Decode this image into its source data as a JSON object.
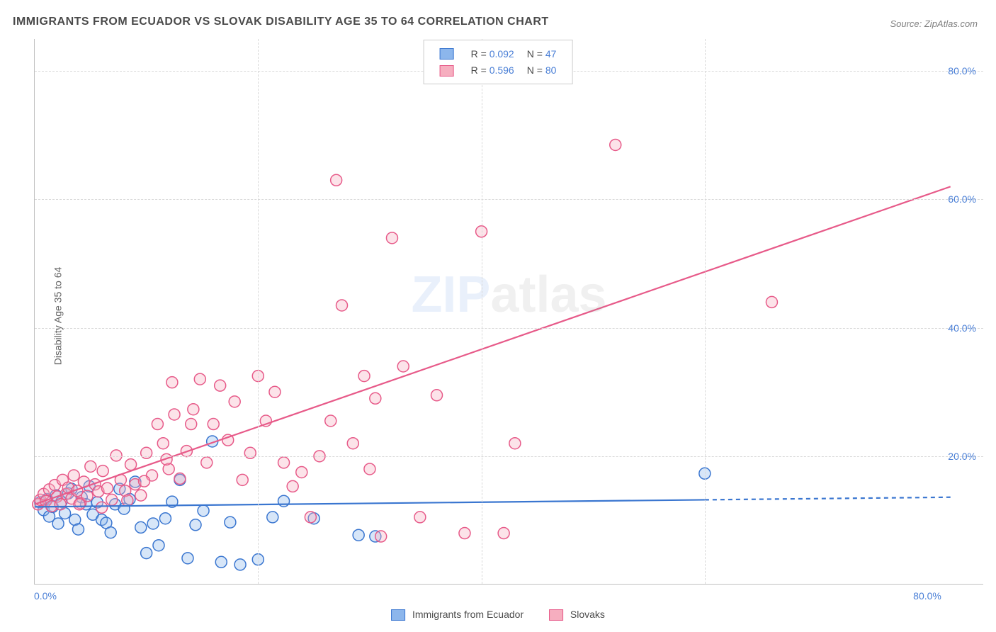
{
  "title": "IMMIGRANTS FROM ECUADOR VS SLOVAK DISABILITY AGE 35 TO 64 CORRELATION CHART",
  "source": "Source: ZipAtlas.com",
  "ylabel": "Disability Age 35 to 64",
  "watermark_zip": "ZIP",
  "watermark_atlas": "atlas",
  "chart": {
    "type": "scatter",
    "xlim": [
      0,
      85
    ],
    "ylim": [
      0,
      85
    ],
    "xticks": [
      0,
      80
    ],
    "xtick_labels": [
      "0.0%",
      "80.0%"
    ],
    "yticks": [
      20,
      40,
      60,
      80
    ],
    "ytick_labels": [
      "20.0%",
      "40.0%",
      "60.0%",
      "80.0%"
    ],
    "grid_color": "#d8d8d8",
    "background_color": "#ffffff",
    "marker_radius": 8,
    "marker_fill_opacity": 0.35,
    "marker_stroke_width": 1.5,
    "trend_width": 2.2,
    "series": [
      {
        "name": "Immigrants from Ecuador",
        "color_fill": "#8cb6ec",
        "color_stroke": "#3a76d0",
        "r_label": "R =",
        "r_value": "0.092",
        "n_label": "N =",
        "n_value": "47",
        "trend": {
          "x1": 0,
          "y1": 12.1,
          "x2": 60,
          "y2": 13.2,
          "x_dash_to": 82
        },
        "points": [
          [
            0.5,
            12.8
          ],
          [
            0.8,
            11.6
          ],
          [
            1.1,
            13.3
          ],
          [
            1.3,
            10.6
          ],
          [
            1.6,
            12.1
          ],
          [
            1.9,
            13.9
          ],
          [
            2.1,
            9.5
          ],
          [
            2.4,
            12.9
          ],
          [
            2.7,
            11.1
          ],
          [
            3.0,
            14.2
          ],
          [
            3.3,
            14.9
          ],
          [
            3.6,
            10.1
          ],
          [
            3.9,
            8.6
          ],
          [
            4.2,
            13.6
          ],
          [
            4.6,
            12.5
          ],
          [
            4.9,
            15.3
          ],
          [
            5.2,
            10.9
          ],
          [
            5.6,
            12.8
          ],
          [
            6.0,
            10.1
          ],
          [
            6.4,
            9.6
          ],
          [
            6.8,
            8.1
          ],
          [
            7.2,
            12.5
          ],
          [
            7.6,
            14.9
          ],
          [
            8.0,
            11.8
          ],
          [
            8.5,
            13.3
          ],
          [
            9.0,
            16.0
          ],
          [
            9.5,
            8.9
          ],
          [
            10.0,
            4.9
          ],
          [
            10.6,
            9.5
          ],
          [
            11.1,
            6.1
          ],
          [
            11.7,
            10.3
          ],
          [
            12.3,
            12.9
          ],
          [
            13.0,
            16.3
          ],
          [
            13.7,
            4.1
          ],
          [
            14.4,
            9.3
          ],
          [
            15.1,
            11.5
          ],
          [
            15.9,
            22.3
          ],
          [
            16.7,
            3.5
          ],
          [
            17.5,
            9.7
          ],
          [
            18.4,
            3.1
          ],
          [
            20.0,
            3.9
          ],
          [
            21.3,
            10.5
          ],
          [
            22.3,
            13.0
          ],
          [
            25.0,
            10.3
          ],
          [
            29.0,
            7.7
          ],
          [
            30.5,
            7.5
          ],
          [
            60.0,
            17.3
          ]
        ]
      },
      {
        "name": "Slovaks",
        "color_fill": "#f6aebf",
        "color_stroke": "#e75a89",
        "r_label": "R =",
        "r_value": "0.596",
        "n_label": "N =",
        "n_value": "80",
        "trend": {
          "x1": 0,
          "y1": 12.5,
          "x2": 82,
          "y2": 62.0,
          "x_dash_to": 82
        },
        "points": [
          [
            0.3,
            12.5
          ],
          [
            0.5,
            13.2
          ],
          [
            0.8,
            14.1
          ],
          [
            1.0,
            13.0
          ],
          [
            1.3,
            14.8
          ],
          [
            1.5,
            12.2
          ],
          [
            1.8,
            15.5
          ],
          [
            2.0,
            13.7
          ],
          [
            2.3,
            12.5
          ],
          [
            2.5,
            16.3
          ],
          [
            2.8,
            14.1
          ],
          [
            3.0,
            15.1
          ],
          [
            3.3,
            13.4
          ],
          [
            3.5,
            17.0
          ],
          [
            3.8,
            14.6
          ],
          [
            4.1,
            12.7
          ],
          [
            4.4,
            16.0
          ],
          [
            4.7,
            13.8
          ],
          [
            5.0,
            18.4
          ],
          [
            5.4,
            15.6
          ],
          [
            5.7,
            14.5
          ],
          [
            6.1,
            17.7
          ],
          [
            6.5,
            15.0
          ],
          [
            6.9,
            13.2
          ],
          [
            7.3,
            20.1
          ],
          [
            7.7,
            16.3
          ],
          [
            8.1,
            14.6
          ],
          [
            8.6,
            18.7
          ],
          [
            9.0,
            15.6
          ],
          [
            9.5,
            13.9
          ],
          [
            10.0,
            20.5
          ],
          [
            10.5,
            17.0
          ],
          [
            11.0,
            25.0
          ],
          [
            11.5,
            22.0
          ],
          [
            12.0,
            18.0
          ],
          [
            12.5,
            26.5
          ],
          [
            13.0,
            16.5
          ],
          [
            13.6,
            20.8
          ],
          [
            14.2,
            27.3
          ],
          [
            14.8,
            32.0
          ],
          [
            15.4,
            19.0
          ],
          [
            16.0,
            25.0
          ],
          [
            16.6,
            31.0
          ],
          [
            17.3,
            22.5
          ],
          [
            17.9,
            28.5
          ],
          [
            18.6,
            16.3
          ],
          [
            19.3,
            20.5
          ],
          [
            20.0,
            32.5
          ],
          [
            20.7,
            25.5
          ],
          [
            21.5,
            30.0
          ],
          [
            22.3,
            19.0
          ],
          [
            23.1,
            15.3
          ],
          [
            23.9,
            17.5
          ],
          [
            24.7,
            10.5
          ],
          [
            25.5,
            20.0
          ],
          [
            26.5,
            25.5
          ],
          [
            27.5,
            43.5
          ],
          [
            27.0,
            63.0
          ],
          [
            28.5,
            22.0
          ],
          [
            29.5,
            32.5
          ],
          [
            30.0,
            18.0
          ],
          [
            30.5,
            29.0
          ],
          [
            31.0,
            7.5
          ],
          [
            32.0,
            54.0
          ],
          [
            33.0,
            34.0
          ],
          [
            34.5,
            10.5
          ],
          [
            36.0,
            29.5
          ],
          [
            38.5,
            8.0
          ],
          [
            40.0,
            55.0
          ],
          [
            42.0,
            8.0
          ],
          [
            43.0,
            22.0
          ],
          [
            52.0,
            68.5
          ],
          [
            66.0,
            44.0
          ],
          [
            12.3,
            31.5
          ],
          [
            14.0,
            25.0
          ],
          [
            11.8,
            19.5
          ],
          [
            9.8,
            16.1
          ],
          [
            8.3,
            13.1
          ],
          [
            6.0,
            12.0
          ],
          [
            4.0,
            12.5
          ]
        ]
      }
    ]
  }
}
